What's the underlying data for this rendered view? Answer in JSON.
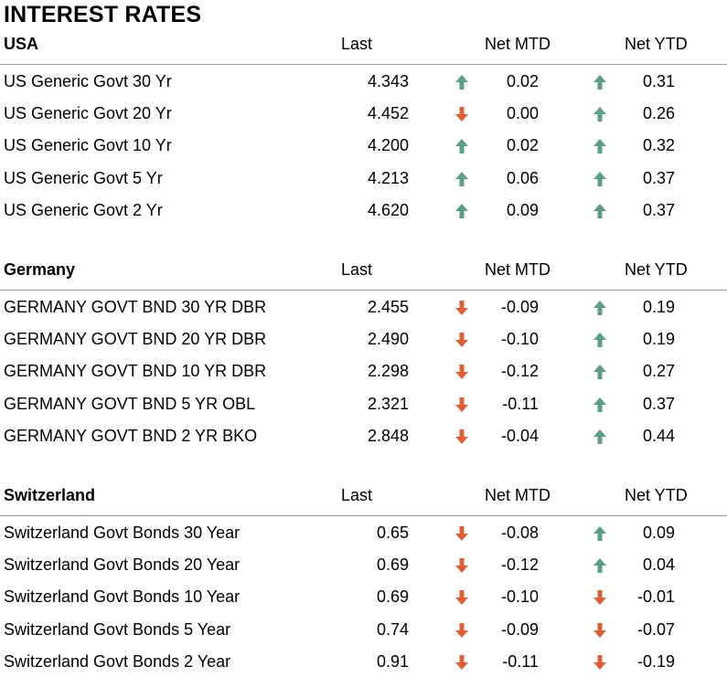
{
  "title": "INTEREST RATES",
  "colors": {
    "up": "#5e9e82",
    "down": "#d9603b"
  },
  "sections": [
    {
      "name": "USA",
      "headers": {
        "last": "Last",
        "mtd": "Net MTD",
        "ytd": "Net YTD"
      },
      "rows": [
        {
          "label": "US Generic Govt 30 Yr",
          "last": "4.343",
          "mtd_dir": "up",
          "mtd": "0.02",
          "ytd_dir": "up",
          "ytd": "0.31"
        },
        {
          "label": "US Generic Govt 20 Yr",
          "last": "4.452",
          "mtd_dir": "down",
          "mtd": "0.00",
          "ytd_dir": "up",
          "ytd": "0.26"
        },
        {
          "label": "US Generic Govt 10 Yr",
          "last": "4.200",
          "mtd_dir": "up",
          "mtd": "0.02",
          "ytd_dir": "up",
          "ytd": "0.32"
        },
        {
          "label": "US Generic Govt 5 Yr",
          "last": "4.213",
          "mtd_dir": "up",
          "mtd": "0.06",
          "ytd_dir": "up",
          "ytd": "0.37"
        },
        {
          "label": "US Generic Govt 2 Yr",
          "last": "4.620",
          "mtd_dir": "up",
          "mtd": "0.09",
          "ytd_dir": "up",
          "ytd": "0.37"
        }
      ]
    },
    {
      "name": "Germany",
      "headers": {
        "last": "Last",
        "mtd": "Net MTD",
        "ytd": "Net YTD"
      },
      "rows": [
        {
          "label": "GERMANY GOVT BND 30 YR DBR",
          "last": "2.455",
          "mtd_dir": "down",
          "mtd": "-0.09",
          "ytd_dir": "up",
          "ytd": "0.19"
        },
        {
          "label": "GERMANY GOVT BND 20 YR DBR",
          "last": "2.490",
          "mtd_dir": "down",
          "mtd": "-0.10",
          "ytd_dir": "up",
          "ytd": "0.19"
        },
        {
          "label": "GERMANY GOVT BND 10 YR DBR",
          "last": "2.298",
          "mtd_dir": "down",
          "mtd": "-0.12",
          "ytd_dir": "up",
          "ytd": "0.27"
        },
        {
          "label": "GERMANY GOVT BND 5 YR OBL",
          "last": "2.321",
          "mtd_dir": "down",
          "mtd": "-0.11",
          "ytd_dir": "up",
          "ytd": "0.37"
        },
        {
          "label": "GERMANY GOVT BND 2 YR BKO",
          "last": "2.848",
          "mtd_dir": "down",
          "mtd": "-0.04",
          "ytd_dir": "up",
          "ytd": "0.44"
        }
      ]
    },
    {
      "name": "Switzerland",
      "headers": {
        "last": "Last",
        "mtd": "Net MTD",
        "ytd": "Net YTD"
      },
      "rows": [
        {
          "label": "Switzerland Govt Bonds 30 Year",
          "last": "0.65",
          "mtd_dir": "down",
          "mtd": "-0.08",
          "ytd_dir": "up",
          "ytd": "0.09"
        },
        {
          "label": "Switzerland Govt Bonds 20 Year",
          "last": "0.69",
          "mtd_dir": "down",
          "mtd": "-0.12",
          "ytd_dir": "up",
          "ytd": "0.04"
        },
        {
          "label": "Switzerland Govt Bonds 10 Year",
          "last": "0.69",
          "mtd_dir": "down",
          "mtd": "-0.10",
          "ytd_dir": "down",
          "ytd": "-0.01"
        },
        {
          "label": "Switzerland Govt Bonds 5 Year",
          "last": "0.74",
          "mtd_dir": "down",
          "mtd": "-0.09",
          "ytd_dir": "down",
          "ytd": "-0.07"
        },
        {
          "label": "Switzerland Govt Bonds 2 Year",
          "last": "0.91",
          "mtd_dir": "down",
          "mtd": "-0.11",
          "ytd_dir": "down",
          "ytd": "-0.19"
        }
      ]
    }
  ]
}
